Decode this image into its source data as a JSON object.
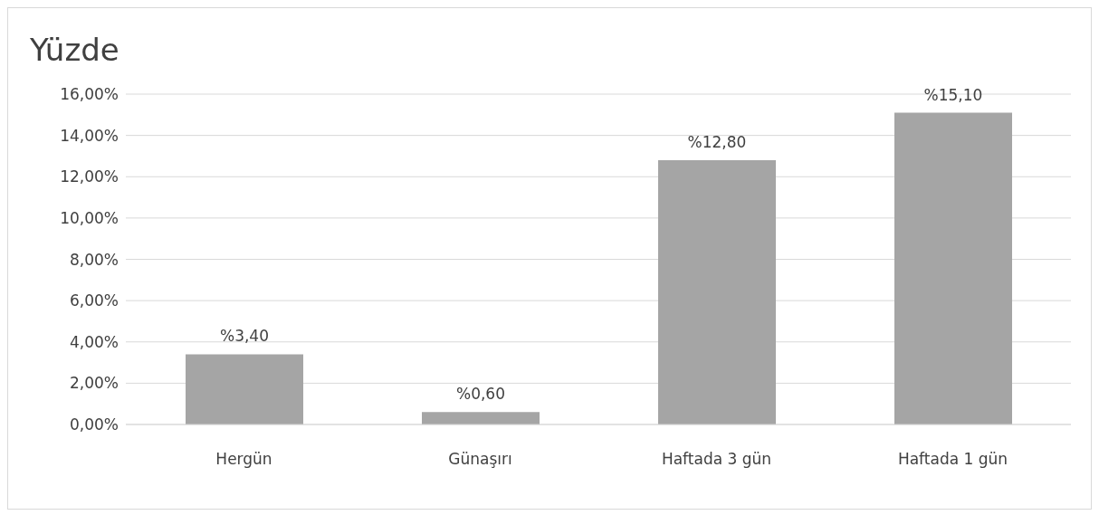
{
  "chart_data": {
    "type": "bar",
    "title": "Yüzde",
    "categories": [
      "Hergün",
      "Günaşırı",
      "Haftada 3 gün",
      "Haftada 1 gün"
    ],
    "values": [
      3.4,
      0.6,
      12.8,
      15.1
    ],
    "value_labels": [
      "%3,40",
      "%0,60",
      "%12,80",
      "%15,10"
    ],
    "color": "#a5a5a5",
    "ylim": [
      0,
      16
    ],
    "yticks": [
      {
        "value": 0,
        "label": "0,00%"
      },
      {
        "value": 2,
        "label": "2,00%"
      },
      {
        "value": 4,
        "label": "4,00%"
      },
      {
        "value": 6,
        "label": "6,00%"
      },
      {
        "value": 8,
        "label": "8,00%"
      },
      {
        "value": 10,
        "label": "10,00%"
      },
      {
        "value": 12,
        "label": "12,00%"
      },
      {
        "value": 14,
        "label": "14,00%"
      },
      {
        "value": 16,
        "label": "16,00%"
      }
    ],
    "grid": "y"
  }
}
